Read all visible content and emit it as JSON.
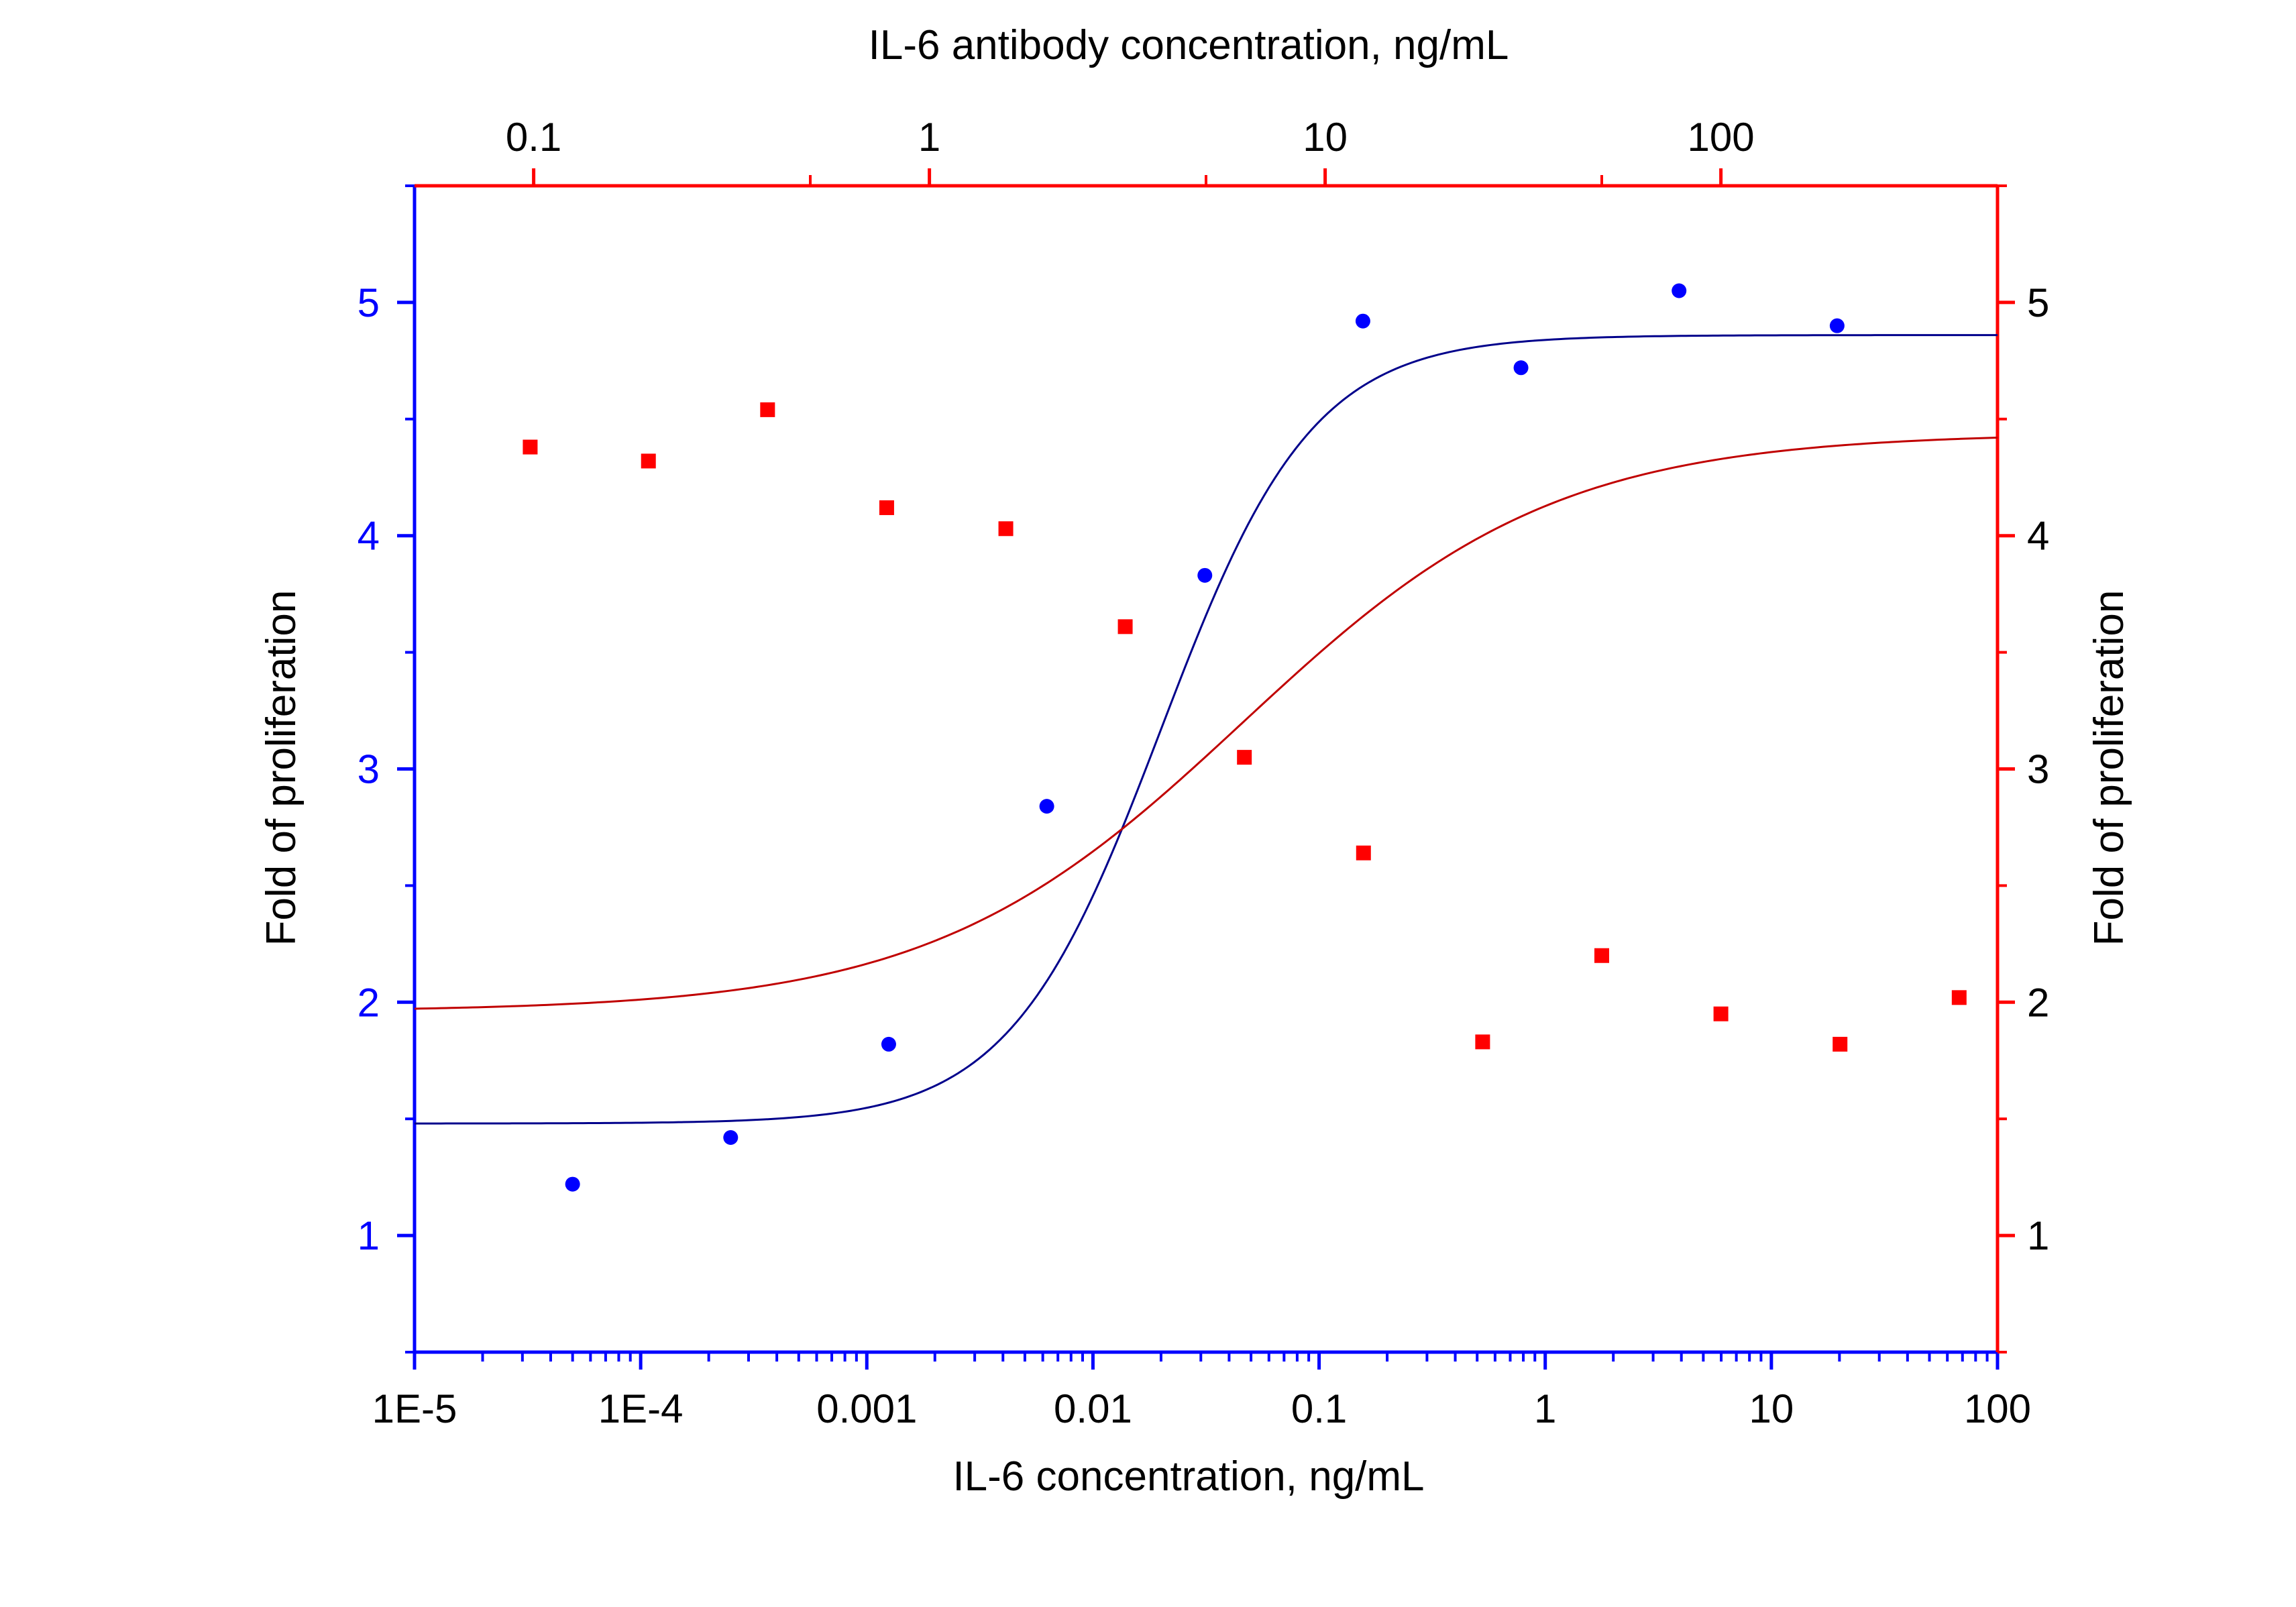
{
  "chart_data": {
    "type": "scatter",
    "x_bottom": {
      "label": "IL-6 concentration, ng/mL",
      "scale": "log",
      "range": [
        1e-05,
        100
      ],
      "ticks": [
        1e-05,
        0.0001,
        0.001,
        0.01,
        0.1,
        1,
        10,
        100
      ],
      "tick_labels": [
        "1E-5",
        "1E-4",
        "0.001",
        "0.01",
        "0.1",
        "1",
        "10",
        "100"
      ],
      "color": "#0000ff"
    },
    "x_top": {
      "label": "IL-6 antibody concentration, ng/mL",
      "scale": "log",
      "range": [
        0.05,
        500
      ],
      "ticks": [
        0.1,
        1,
        10,
        100
      ],
      "tick_labels": [
        "0.1",
        "1",
        "10",
        "100"
      ],
      "minor_ticks": [
        0.5,
        5,
        50
      ],
      "color": "#ff0000"
    },
    "y_left": {
      "label": "Fold of proliferation",
      "range": [
        0.5,
        5.5
      ],
      "ticks": [
        1,
        2,
        3,
        4,
        5
      ],
      "tick_labels": [
        "1",
        "2",
        "3",
        "4",
        "5"
      ],
      "color": "#0000ff"
    },
    "y_right": {
      "label": "Fold of proliferation",
      "range": [
        0.5,
        5.5
      ],
      "ticks": [
        1,
        2,
        3,
        4,
        5
      ],
      "tick_labels": [
        "1",
        "2",
        "3",
        "4",
        "5"
      ],
      "color": "#ff0000"
    },
    "series": [
      {
        "axis": "bottom",
        "marker": "circle",
        "color": "#0000ff",
        "points": [
          {
            "x": 5e-05,
            "y": 1.22
          },
          {
            "x": 0.00025,
            "y": 1.42
          },
          {
            "x": 0.00125,
            "y": 1.82
          },
          {
            "x": 0.00625,
            "y": 2.84
          },
          {
            "x": 0.03125,
            "y": 3.83
          },
          {
            "x": 0.15625,
            "y": 4.92
          },
          {
            "x": 0.78125,
            "y": 4.72
          },
          {
            "x": 3.90625,
            "y": 5.05
          },
          {
            "x": 19.53125,
            "y": 4.9
          }
        ],
        "fit": {
          "bottom": 1.48,
          "top": 4.86,
          "ec50": 0.02,
          "hill": 1.3
        }
      },
      {
        "axis": "top",
        "marker": "square",
        "color": "#ff0000",
        "points": [
          {
            "x": 0.098,
            "y": 4.38
          },
          {
            "x": 0.195,
            "y": 4.32
          },
          {
            "x": 0.39,
            "y": 4.54
          },
          {
            "x": 0.78,
            "y": 4.12
          },
          {
            "x": 1.56,
            "y": 4.03
          },
          {
            "x": 3.125,
            "y": 3.61
          },
          {
            "x": 6.25,
            "y": 3.05
          },
          {
            "x": 12.5,
            "y": 2.64
          },
          {
            "x": 25,
            "y": 1.83
          },
          {
            "x": 50,
            "y": 2.2
          },
          {
            "x": 100,
            "y": 1.95
          },
          {
            "x": 200,
            "y": 1.82
          },
          {
            "x": 400,
            "y": 2.02
          }
        ],
        "fit": {
          "bottom": 1.96,
          "top": 4.44,
          "ec50": 6.2,
          "hill": 1.1
        }
      }
    ]
  }
}
